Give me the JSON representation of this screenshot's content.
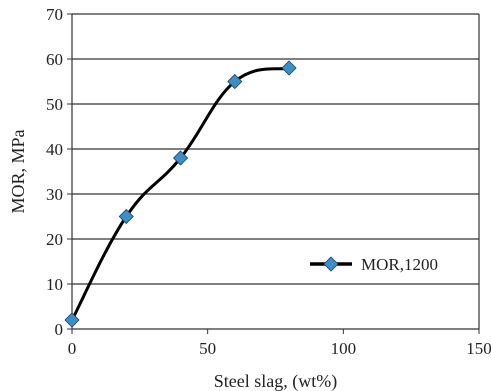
{
  "chart_data": {
    "type": "line",
    "title": "",
    "xlabel": "Steel slag, (wt%)",
    "ylabel": "MOR, MPa",
    "xlim": [
      0,
      150
    ],
    "ylim": [
      0,
      70
    ],
    "xticks": [
      0,
      50,
      100,
      150
    ],
    "yticks": [
      0,
      10,
      20,
      30,
      40,
      50,
      60,
      70
    ],
    "grid": "horizontal",
    "legend_position": "right",
    "series": [
      {
        "name": "MOR,1200",
        "marker": "diamond",
        "marker_color": "#3b8fc8",
        "line_color": "#000000",
        "smooth": true,
        "x": [
          0,
          20,
          40,
          60,
          80
        ],
        "y": [
          2,
          25,
          38,
          55,
          58
        ]
      }
    ]
  }
}
